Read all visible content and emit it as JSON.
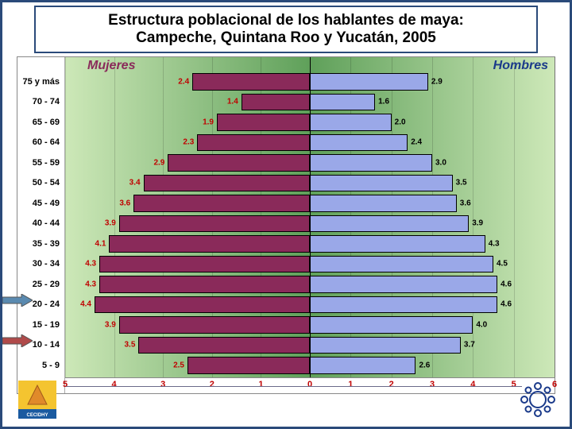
{
  "title": {
    "line1": "Estructura poblacional de los hablantes de maya:",
    "line2": "Campeche, Quintana Roo y Yucatán, 2005"
  },
  "series": {
    "female_label": "Mujeres",
    "male_label": "Hombres",
    "female_color": "#8a2a5a",
    "male_color": "#9aa8e8"
  },
  "chart": {
    "type": "population-pyramid",
    "background_gradient": [
      "#cde8b8",
      "#5fa05a",
      "#cde8b8"
    ],
    "age_groups": [
      "75 y más",
      "70 - 74",
      "65 - 69",
      "60 - 64",
      "55 - 59",
      "50 - 54",
      "45 - 49",
      "40 - 44",
      "35 - 39",
      "30 - 34",
      "25 - 29",
      "20 - 24",
      "15 - 19",
      "10 - 14",
      "5 - 9"
    ],
    "female_values": [
      2.4,
      1.4,
      1.9,
      2.3,
      2.9,
      3.4,
      3.6,
      3.9,
      4.1,
      4.3,
      4.3,
      4.4,
      3.9,
      3.5,
      2.5
    ],
    "male_values": [
      2.9,
      1.6,
      2.0,
      2.4,
      3.0,
      3.5,
      3.6,
      3.9,
      4.3,
      4.5,
      4.6,
      4.6,
      4.0,
      3.7,
      2.6
    ],
    "axis": {
      "female_ticks": [
        5,
        4,
        3,
        2,
        1,
        0
      ],
      "male_ticks": [
        1,
        2,
        3,
        4,
        5,
        6
      ],
      "female_max": 5,
      "male_max": 6,
      "tick_color": "#c00000",
      "value_fontsize": 10,
      "label_fontsize": 11
    },
    "row_height": 25.5,
    "bar_border": "#000000"
  },
  "arrows": [
    {
      "row_index": 11,
      "color": "#5a8ab0"
    },
    {
      "row_index": 13,
      "color": "#b04a4a"
    }
  ]
}
